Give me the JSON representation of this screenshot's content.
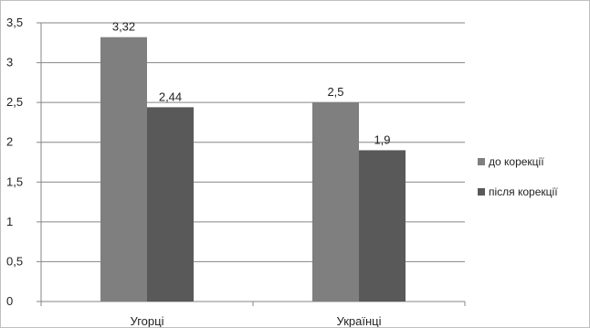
{
  "chart_data": {
    "type": "bar",
    "categories": [
      "Угорці",
      "Українці"
    ],
    "series": [
      {
        "name": "до корекції",
        "values": [
          3.32,
          2.5
        ],
        "labels": [
          "3,32",
          "2,5"
        ],
        "color": "#7f7f7f"
      },
      {
        "name": "після корекції",
        "values": [
          2.44,
          1.9
        ],
        "labels": [
          "2,44",
          "1,9"
        ],
        "color": "#595959"
      }
    ],
    "ylim": [
      0,
      3.5
    ],
    "yticks": [
      0,
      0.5,
      1,
      1.5,
      2,
      2.5,
      3,
      3.5
    ],
    "ytick_labels": [
      "0",
      "0,5",
      "1",
      "1,5",
      "2",
      "2,5",
      "3",
      "3,5"
    ],
    "grid": true,
    "legend_position": "right",
    "title": "",
    "xlabel": "",
    "ylabel": ""
  }
}
